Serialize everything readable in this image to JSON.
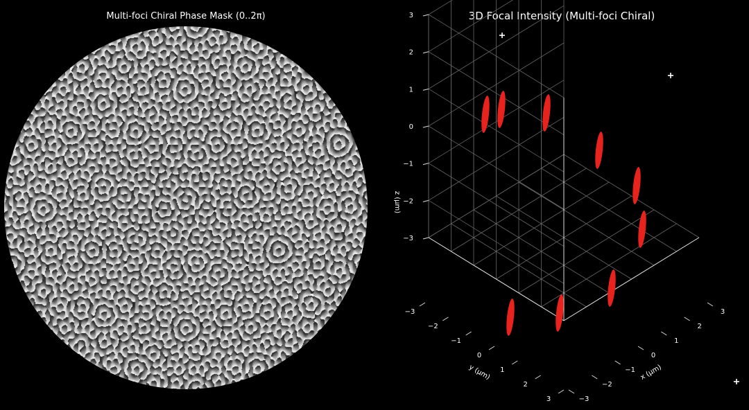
{
  "left_panel": {
    "title": "Multi-foci Chiral Phase Mask (0..2π)"
  },
  "right_panel": {
    "title": "3D Focal Intensity (Multi-foci Chiral)"
  },
  "chart_data": [
    {
      "type": "heatmap",
      "title": "Multi-foci Chiral Phase Mask (0..2π)",
      "colormap": "gray",
      "value_range": [
        0,
        6.283
      ],
      "aperture": "circular"
    },
    {
      "type": "scatter",
      "projection": "3d",
      "title": "3D Focal Intensity (Multi-foci Chiral)",
      "xlabel": "x (μm)",
      "ylabel": "y (μm)",
      "zlabel": "z (μm)",
      "xlim": [
        -3,
        3
      ],
      "ylim": [
        -3,
        3
      ],
      "zlim": [
        -3,
        3
      ],
      "x_ticks": [
        "−3",
        "−2",
        "−1",
        "0",
        "1",
        "2",
        "3"
      ],
      "y_ticks": [
        "−3",
        "−2",
        "−1",
        "0",
        "1",
        "2",
        "3"
      ],
      "z_ticks": [
        "−3",
        "−2",
        "−1",
        "0",
        "1",
        "2",
        "3"
      ],
      "grid": true,
      "color": "#e8221c",
      "foci": [
        {
          "x": -2.5,
          "y": 0.9,
          "z": 2.2
        },
        {
          "x": -2.2,
          "y": 1.1,
          "z": 2.4
        },
        {
          "x": -0.8,
          "y": 1.7,
          "z": 2.1
        },
        {
          "x": 1.0,
          "y": 0.1,
          "z": 1.4
        },
        {
          "x": 2.0,
          "y": -2.4,
          "z": 0.5
        },
        {
          "x": 2.3,
          "y": -2.6,
          "z": -0.7
        },
        {
          "x": 0.5,
          "y": -2.4,
          "z": -2.3
        },
        {
          "x": -0.5,
          "y": 0.3,
          "z": -2.7
        },
        {
          "x": -1.5,
          "y": 2.0,
          "z": -2.6
        }
      ],
      "markers": [
        "+",
        "+",
        "+"
      ]
    }
  ]
}
